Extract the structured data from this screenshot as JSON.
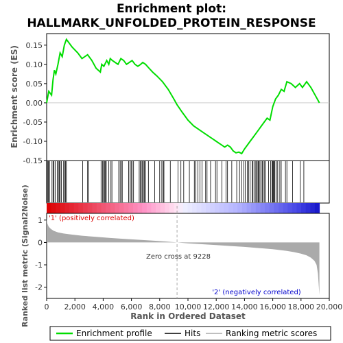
{
  "chart_data": {
    "type": "line",
    "title_line1": "Enrichment plot:",
    "title_line2": "HALLMARK_UNFOLDED_PROTEIN_RESPONSE",
    "es_panel": {
      "ylabel": "Enrichment score (ES)",
      "ylim": [
        -0.15,
        0.18
      ],
      "yticks": [
        -0.15,
        -0.1,
        -0.05,
        0.0,
        0.05,
        0.1,
        0.15
      ],
      "ytick_labels": [
        "-0.15",
        "-0.10",
        "-0.05",
        "0.00",
        "0.05",
        "0.10",
        "0.15"
      ],
      "series_name": "Enrichment profile",
      "color": "#00dd00",
      "x": [
        0,
        150,
        350,
        450,
        550,
        650,
        800,
        950,
        1100,
        1250,
        1400,
        1800,
        2200,
        2500,
        2700,
        2900,
        3200,
        3500,
        3800,
        3900,
        4050,
        4250,
        4400,
        4500,
        4650,
        4850,
        5050,
        5250,
        5450,
        5650,
        5850,
        6050,
        6250,
        6450,
        6650,
        6800,
        7000,
        7250,
        7500,
        7800,
        8200,
        8600,
        9000,
        9228,
        9600,
        10000,
        10400,
        10800,
        11200,
        11400,
        11600,
        11800,
        12000,
        12200,
        12400,
        12600,
        12800,
        13000,
        13200,
        13400,
        13600,
        13800,
        14000,
        14200,
        14400,
        14600,
        14800,
        15000,
        15200,
        15400,
        15600,
        15800,
        16000,
        16200,
        16400,
        16600,
        16800,
        17000,
        17300,
        17600,
        17900,
        18100,
        18400,
        18700,
        19000,
        19300
      ],
      "y": [
        0.0,
        0.03,
        0.02,
        0.06,
        0.085,
        0.075,
        0.1,
        0.13,
        0.12,
        0.15,
        0.165,
        0.145,
        0.13,
        0.115,
        0.12,
        0.125,
        0.11,
        0.09,
        0.08,
        0.1,
        0.095,
        0.11,
        0.1,
        0.115,
        0.11,
        0.105,
        0.1,
        0.115,
        0.11,
        0.1,
        0.105,
        0.11,
        0.1,
        0.095,
        0.1,
        0.105,
        0.1,
        0.09,
        0.08,
        0.07,
        0.055,
        0.035,
        0.01,
        -0.005,
        -0.025,
        -0.045,
        -0.06,
        -0.07,
        -0.08,
        -0.085,
        -0.09,
        -0.095,
        -0.1,
        -0.105,
        -0.11,
        -0.115,
        -0.11,
        -0.115,
        -0.125,
        -0.13,
        -0.128,
        -0.132,
        -0.12,
        -0.11,
        -0.1,
        -0.09,
        -0.08,
        -0.07,
        -0.06,
        -0.05,
        -0.04,
        -0.045,
        -0.01,
        0.01,
        0.02,
        0.035,
        0.03,
        0.055,
        0.05,
        0.04,
        0.05,
        0.04,
        0.055,
        0.04,
        0.02,
        0.0
      ]
    },
    "hits_panel": {
      "hit_positions": [
        30,
        90,
        140,
        200,
        380,
        460,
        520,
        610,
        760,
        830,
        900,
        960,
        1050,
        1200,
        1280,
        1330,
        1400,
        2550,
        2900,
        2950,
        3850,
        3950,
        4000,
        4100,
        4150,
        4220,
        4400,
        4550,
        4620,
        5100,
        5200,
        5280,
        5350,
        5800,
        5900,
        5980,
        6050,
        6150,
        6550,
        6620,
        6700,
        6780,
        6850,
        6920,
        7000,
        7200,
        7650,
        8000,
        8150,
        8250,
        8300,
        8750,
        9300,
        9500,
        9700,
        10100,
        10450,
        10550,
        10700,
        10850,
        11000,
        11250,
        11350,
        11600,
        11950,
        12050,
        12400,
        12700,
        12800,
        13100,
        13450,
        13650,
        13800,
        13950,
        14050,
        14200,
        14300,
        14400,
        14550,
        14600,
        14700,
        14800,
        14850,
        14950,
        15000,
        15050,
        15150,
        15250,
        15300,
        15400,
        15500,
        15700,
        15850,
        15950,
        16000,
        16050,
        16100,
        16150,
        16250,
        16350,
        16500,
        16600,
        16900,
        17000,
        17400,
        17950,
        18200
      ]
    },
    "metric_panel": {
      "ylabel": "Ranked list metric (Signal2Noise)",
      "ylim": [
        -2.5,
        1.3
      ],
      "yticks": [
        -2,
        -1,
        0,
        1
      ],
      "ytick_labels": [
        "-2",
        "-1",
        "0",
        "1"
      ],
      "fill_color": "#aaaaaa",
      "x": [
        0,
        50,
        150,
        300,
        500,
        800,
        1200,
        1800,
        2500,
        3500,
        4500,
        5500,
        6500,
        7500,
        8500,
        9228,
        10000,
        11000,
        12000,
        13000,
        14000,
        15000,
        16000,
        17000,
        17500,
        18000,
        18400,
        18700,
        18950,
        19100,
        19200,
        19250,
        19300
      ],
      "y": [
        1.1,
        0.85,
        0.7,
        0.6,
        0.52,
        0.45,
        0.4,
        0.35,
        0.3,
        0.25,
        0.2,
        0.16,
        0.12,
        0.08,
        0.04,
        0.0,
        -0.04,
        -0.08,
        -0.12,
        -0.16,
        -0.2,
        -0.25,
        -0.3,
        -0.38,
        -0.43,
        -0.5,
        -0.58,
        -0.68,
        -0.82,
        -1.0,
        -1.4,
        -1.9,
        -2.35
      ],
      "positive_label": "'1' (positively correlated)",
      "negative_label": "'2' (negatively correlated)",
      "zero_cross_label": "Zero cross at 9228",
      "zero_cross": 9228
    },
    "xaxis": {
      "label": "Rank in Ordered Dataset",
      "xlim": [
        0,
        20000
      ],
      "ticks": [
        0,
        2000,
        4000,
        6000,
        8000,
        10000,
        12000,
        14000,
        16000,
        18000,
        20000
      ],
      "tick_labels": [
        "0",
        "2,000",
        "4,000",
        "6,000",
        "8,000",
        "10,000",
        "12,000",
        "14,000",
        "16,000",
        "18,000",
        "20,000"
      ],
      "n_genes": 19300
    },
    "legend": {
      "placement": "bottom",
      "entries": [
        {
          "label": "Enrichment profile",
          "color": "#00dd00"
        },
        {
          "label": "Hits",
          "color": "#000000"
        },
        {
          "label": "Ranking metric scores",
          "color": "#aaaaaa"
        }
      ]
    }
  }
}
